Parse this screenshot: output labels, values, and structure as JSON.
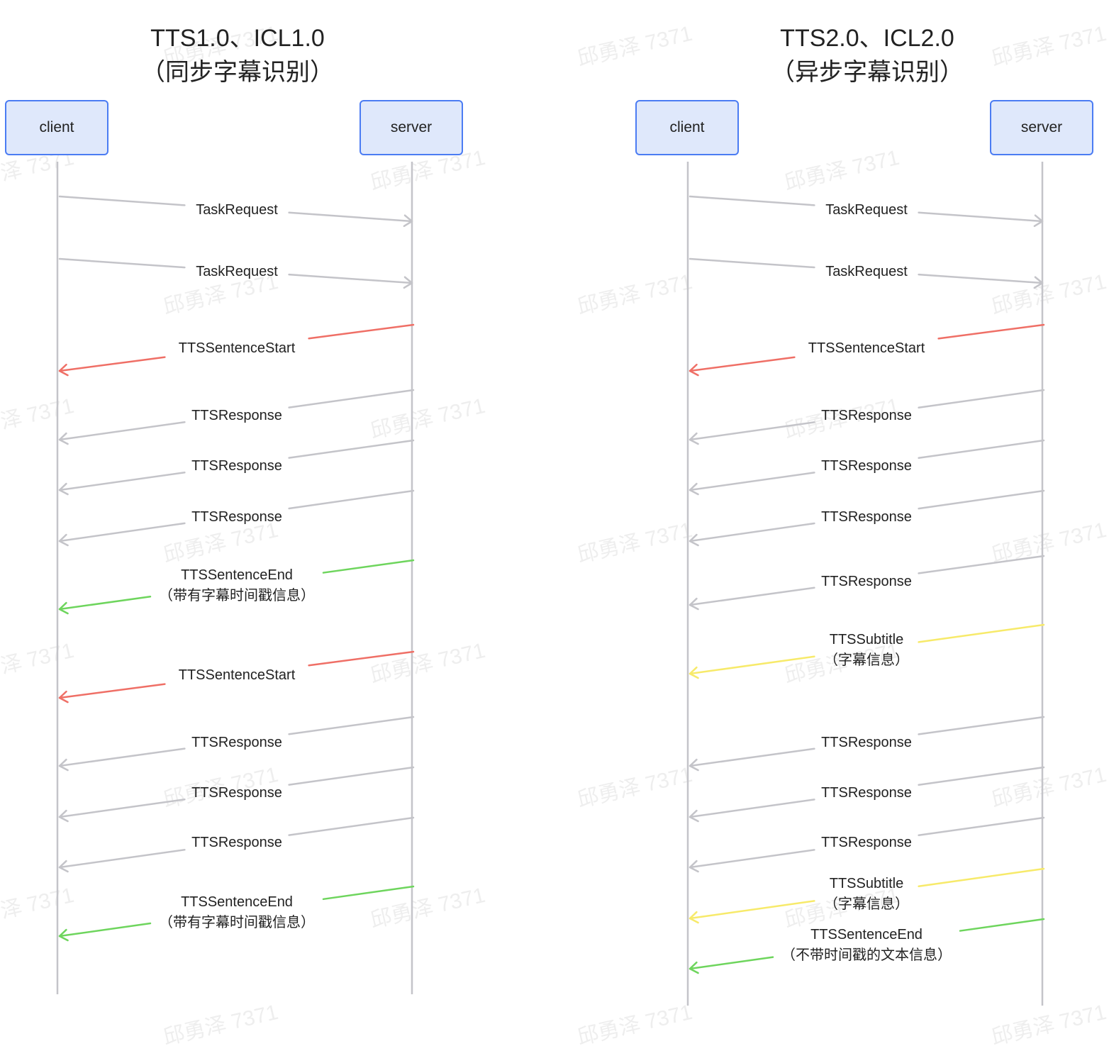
{
  "watermark_text": "邱勇泽 7371",
  "colors": {
    "neutral": "#c4c4c9",
    "start": "#ef6f66",
    "end": "#6ed55d",
    "subtitle": "#f7ea6a",
    "box_border": "#4b7cf3",
    "box_fill": "#dfe8fb"
  },
  "left": {
    "title_line1": "TTS1.0、ICL1.0",
    "title_line2": "（同步字幕识别）",
    "client_label": "client",
    "server_label": "server",
    "messages": [
      {
        "label": "TaskRequest",
        "sub": "",
        "dir": "to_server",
        "kind": "neutral"
      },
      {
        "label": "TaskRequest",
        "sub": "",
        "dir": "to_server",
        "kind": "neutral"
      },
      {
        "label": "TTSSentenceStart",
        "sub": "",
        "dir": "to_client",
        "kind": "start"
      },
      {
        "label": "TTSResponse",
        "sub": "",
        "dir": "to_client",
        "kind": "neutral"
      },
      {
        "label": "TTSResponse",
        "sub": "",
        "dir": "to_client",
        "kind": "neutral"
      },
      {
        "label": "TTSResponse",
        "sub": "",
        "dir": "to_client",
        "kind": "neutral"
      },
      {
        "label": "TTSSentenceEnd",
        "sub": "（带有字幕时间戳信息）",
        "dir": "to_client",
        "kind": "end"
      },
      {
        "label": "TTSSentenceStart",
        "sub": "",
        "dir": "to_client",
        "kind": "start"
      },
      {
        "label": "TTSResponse",
        "sub": "",
        "dir": "to_client",
        "kind": "neutral"
      },
      {
        "label": "TTSResponse",
        "sub": "",
        "dir": "to_client",
        "kind": "neutral"
      },
      {
        "label": "TTSResponse",
        "sub": "",
        "dir": "to_client",
        "kind": "neutral"
      },
      {
        "label": "TTSSentenceEnd",
        "sub": "（带有字幕时间戳信息）",
        "dir": "to_client",
        "kind": "end"
      }
    ]
  },
  "right": {
    "title_line1": "TTS2.0、ICL2.0",
    "title_line2": "（异步字幕识别）",
    "client_label": "client",
    "server_label": "server",
    "messages": [
      {
        "label": "TaskRequest",
        "sub": "",
        "dir": "to_server",
        "kind": "neutral"
      },
      {
        "label": "TaskRequest",
        "sub": "",
        "dir": "to_server",
        "kind": "neutral"
      },
      {
        "label": "TTSSentenceStart",
        "sub": "",
        "dir": "to_client",
        "kind": "start"
      },
      {
        "label": "TTSResponse",
        "sub": "",
        "dir": "to_client",
        "kind": "neutral"
      },
      {
        "label": "TTSResponse",
        "sub": "",
        "dir": "to_client",
        "kind": "neutral"
      },
      {
        "label": "TTSResponse",
        "sub": "",
        "dir": "to_client",
        "kind": "neutral"
      },
      {
        "label": "TTSResponse",
        "sub": "",
        "dir": "to_client",
        "kind": "neutral"
      },
      {
        "label": "TTSSubtitle",
        "sub": "（字幕信息）",
        "dir": "to_client",
        "kind": "subtitle"
      },
      {
        "label": "TTSResponse",
        "sub": "",
        "dir": "to_client",
        "kind": "neutral"
      },
      {
        "label": "TTSResponse",
        "sub": "",
        "dir": "to_client",
        "kind": "neutral"
      },
      {
        "label": "TTSResponse",
        "sub": "",
        "dir": "to_client",
        "kind": "neutral"
      },
      {
        "label": "TTSSubtitle",
        "sub": "（字幕信息）",
        "dir": "to_client",
        "kind": "subtitle"
      },
      {
        "label": "TTSSentenceEnd",
        "sub": "（不带时间戳的文本信息）",
        "dir": "to_client",
        "kind": "end"
      }
    ]
  }
}
